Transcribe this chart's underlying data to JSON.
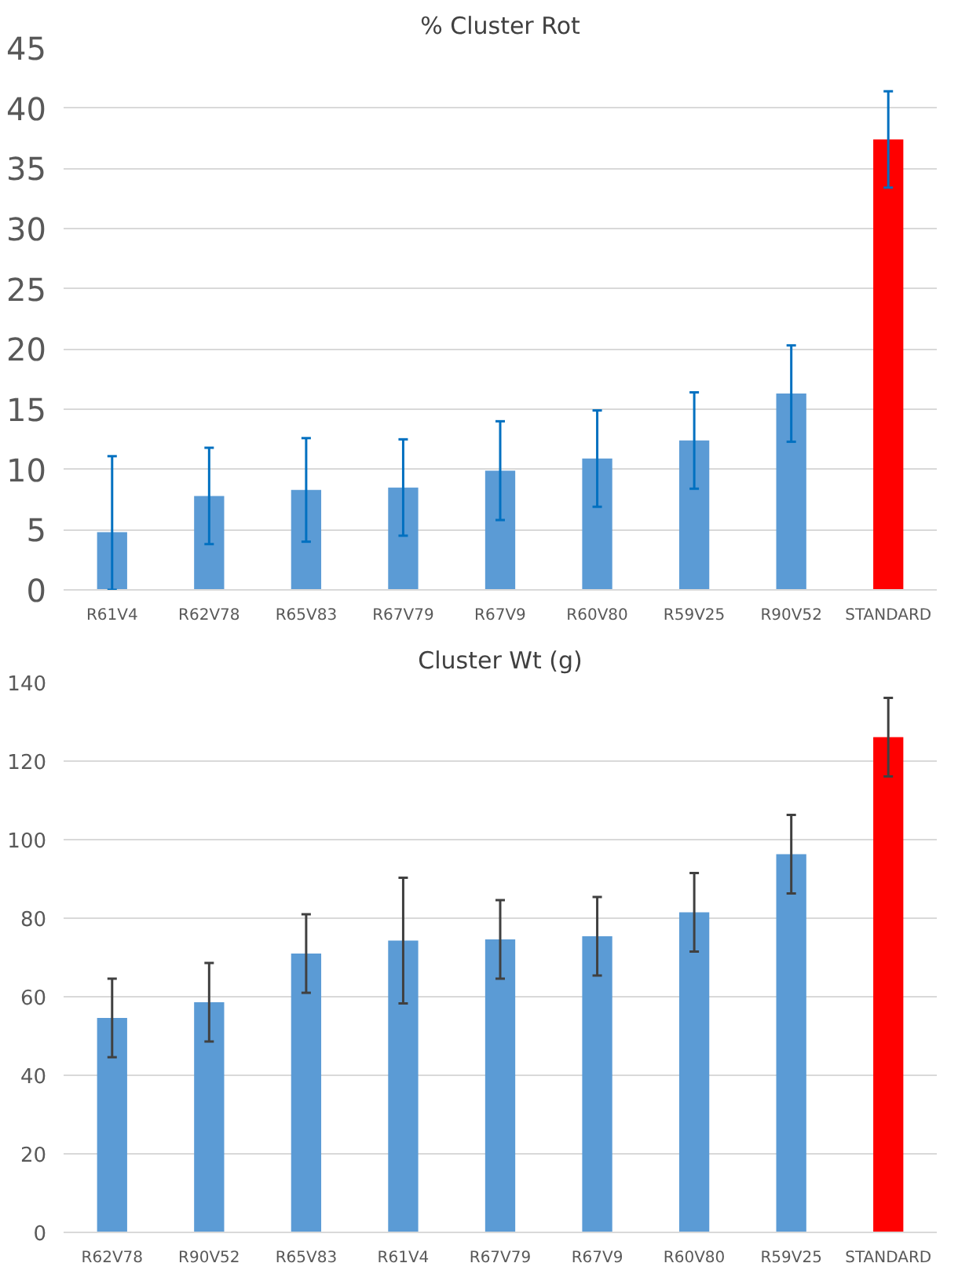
{
  "chart_data": [
    {
      "type": "bar",
      "title": "% Cluster Rot",
      "categories": [
        "R61V4",
        "R62V78",
        "R65V83",
        "R67V79",
        "R67V9",
        "R60V80",
        "R59V25",
        "R90V52",
        "STANDARD"
      ],
      "values": [
        4.8,
        7.8,
        8.3,
        8.5,
        9.9,
        10.9,
        12.4,
        16.3,
        37.4
      ],
      "colors": [
        "#5b9bd5",
        "#5b9bd5",
        "#5b9bd5",
        "#5b9bd5",
        "#5b9bd5",
        "#5b9bd5",
        "#5b9bd5",
        "#5b9bd5",
        "#ff0000"
      ],
      "errors": [
        [
          0,
          11.1
        ],
        4,
        4.3,
        4,
        4.1,
        4,
        4,
        4,
        4
      ],
      "ylim": [
        0,
        45
      ],
      "yticks": [
        0,
        5,
        10,
        15,
        20,
        25,
        30,
        35,
        40,
        45
      ],
      "grid": "y"
    },
    {
      "type": "bar",
      "title": "Cluster Wt (g)",
      "categories": [
        "R62V78",
        "R90V52",
        "R65V83",
        "R61V4",
        "R67V79",
        "R67V9",
        "R60V80",
        "R59V25",
        "STANDARD"
      ],
      "values": [
        54.6,
        58.6,
        71.0,
        74.3,
        74.6,
        75.4,
        81.5,
        96.3,
        126.1
      ],
      "colors": [
        "#5b9bd5",
        "#5b9bd5",
        "#5b9bd5",
        "#5b9bd5",
        "#5b9bd5",
        "#5b9bd5",
        "#5b9bd5",
        "#5b9bd5",
        "#ff0000"
      ],
      "errors": [
        10,
        10,
        10,
        16,
        10,
        10,
        10,
        10,
        10
      ],
      "ylim": [
        0,
        140
      ],
      "yticks": [
        0,
        20,
        40,
        60,
        80,
        100,
        120,
        140
      ],
      "grid": "y"
    }
  ]
}
